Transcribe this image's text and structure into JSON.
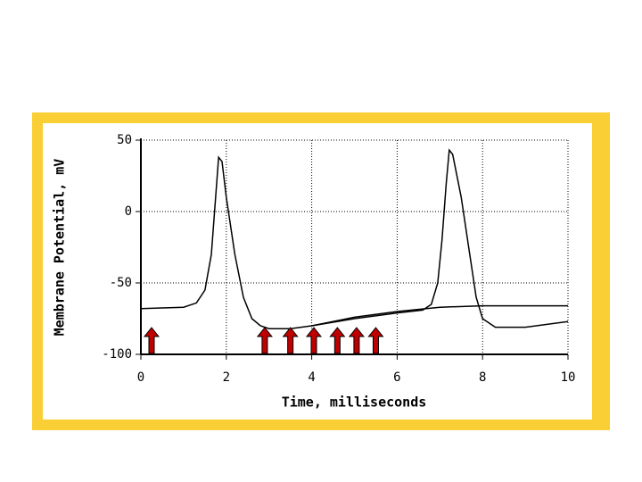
{
  "chart_data": {
    "type": "line",
    "x_label": "Time, milliseconds",
    "y_label": "Membrane Potential, mV",
    "xlim": [
      0,
      10
    ],
    "xticks": [
      0,
      2,
      4,
      6,
      8,
      10
    ],
    "ylim": [
      -100,
      50
    ],
    "yticks": [
      -100,
      -50,
      0,
      50
    ],
    "grid": true,
    "series": [
      {
        "color": "#000000",
        "x": [
          0,
          1,
          1.3,
          1.5,
          1.65,
          1.75,
          1.82,
          1.9,
          2.0,
          2.2,
          2.4,
          2.6,
          2.8,
          3,
          3.5,
          4,
          5,
          6,
          6.6,
          6.8,
          6.95,
          7.05,
          7.15,
          7.22,
          7.3,
          7.5,
          7.7,
          7.85,
          8.0,
          8.3,
          9,
          10
        ],
        "values": [
          -68,
          -67,
          -64,
          -55,
          -30,
          10,
          38,
          35,
          10,
          -30,
          -60,
          -75,
          -80,
          -82,
          -82,
          -80,
          -75,
          -71,
          -69,
          -65,
          -50,
          -20,
          20,
          43,
          40,
          10,
          -30,
          -60,
          -75,
          -81,
          -81,
          -77
        ]
      },
      {
        "color": "#000000",
        "x": [
          4,
          5,
          6,
          7,
          8,
          10
        ],
        "values": [
          -80,
          -74,
          -70,
          -67,
          -66,
          -66
        ]
      }
    ],
    "arrows": {
      "color": "#c00000",
      "x": [
        0.25,
        2.9,
        3.5,
        4.05,
        4.6,
        5.05,
        5.5
      ]
    }
  }
}
